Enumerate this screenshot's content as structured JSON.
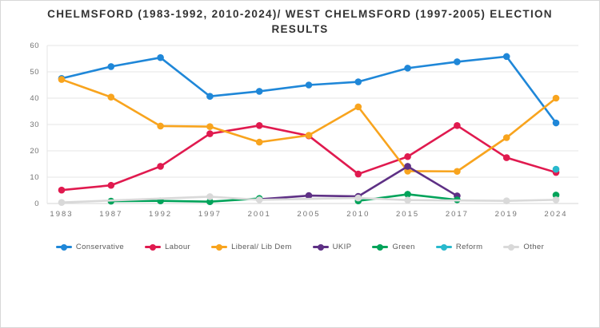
{
  "window": {
    "background_color": "#ffffff",
    "border_color": "#d8d8d8"
  },
  "chart_data": {
    "type": "line",
    "title": "CHELMSFORD (1983-1992, 2010-2024)/ WEST CHELMSFORD (1997-2005) ELECTION RESULTS",
    "xlabel": "",
    "ylabel": "",
    "categories": [
      "1983",
      "1987",
      "1992",
      "1997",
      "2001",
      "2005",
      "2010",
      "2015",
      "2017",
      "2019",
      "2024"
    ],
    "ylim": [
      0,
      60
    ],
    "yticks": [
      0,
      10,
      20,
      30,
      40,
      50,
      60
    ],
    "grid": "horizontal",
    "legend_position": "bottom",
    "series": [
      {
        "name": "Conservative",
        "color": "#1f87d8",
        "span_gaps": false,
        "values": [
          47.5,
          52.0,
          55.4,
          40.7,
          42.6,
          45.0,
          46.2,
          51.4,
          53.8,
          55.8,
          30.6
        ]
      },
      {
        "name": "Labour",
        "color": "#e01a4f",
        "span_gaps": false,
        "values": [
          5.1,
          6.9,
          14.1,
          26.5,
          29.6,
          25.7,
          11.2,
          17.8,
          29.6,
          17.4,
          11.8
        ]
      },
      {
        "name": "Liberal/ Lib Dem",
        "color": "#f8a41e",
        "span_gaps": false,
        "values": [
          47.1,
          40.4,
          29.4,
          29.2,
          23.3,
          25.9,
          36.7,
          12.3,
          12.2,
          25.0,
          40.0
        ]
      },
      {
        "name": "UKIP",
        "color": "#5e3085",
        "span_gaps": false,
        "values": [
          null,
          null,
          null,
          null,
          1.6,
          3.0,
          2.7,
          14.1,
          2.9,
          null,
          null
        ]
      },
      {
        "name": "Green",
        "color": "#00a35a",
        "span_gaps": false,
        "values": [
          null,
          0.9,
          1.0,
          0.7,
          1.9,
          null,
          1.0,
          3.5,
          1.4,
          null,
          3.2
        ]
      },
      {
        "name": "Reform",
        "color": "#29b9cd",
        "span_gaps": false,
        "values": [
          null,
          null,
          null,
          null,
          null,
          null,
          null,
          null,
          null,
          null,
          13.0
        ]
      },
      {
        "name": "Other",
        "color": "#d9d9d9",
        "span_gaps": true,
        "values": [
          0.4,
          null,
          null,
          2.6,
          1.4,
          null,
          2.1,
          1.3,
          null,
          1.0,
          1.4
        ]
      }
    ]
  }
}
